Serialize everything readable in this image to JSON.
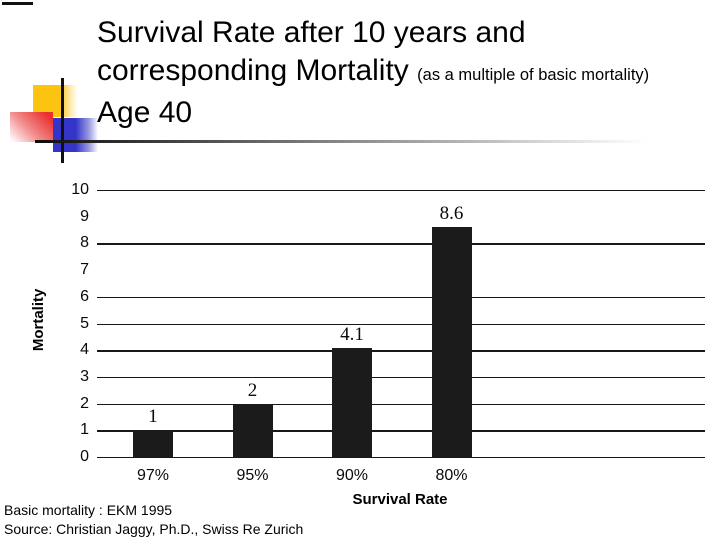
{
  "title": {
    "line1": "Survival Rate after 10 years and",
    "line2_main": "corresponding Mortality ",
    "line2_note": "(as a multiple of basic mortality)",
    "line3": "Age 40"
  },
  "chart_data": {
    "type": "bar",
    "categories": [
      "97%",
      "95%",
      "90%",
      "80%"
    ],
    "values": [
      1,
      2,
      4.1,
      8.6
    ],
    "value_labels": [
      "1",
      "2",
      "4.1",
      "8.6"
    ],
    "xlabel": "Survival Rate",
    "ylabel": "Mortality",
    "ylim": [
      0,
      10
    ],
    "yticks": [
      0,
      1,
      2,
      3,
      4,
      5,
      6,
      7,
      8,
      9,
      10
    ],
    "gridline_values": [
      0,
      1,
      2,
      3,
      4,
      5,
      6,
      8,
      10
    ],
    "grid": true,
    "legend_position": "none",
    "bar_color": "#1b1b1b"
  },
  "footer": {
    "line1": "Basic mortality : EKM 1995",
    "line2": "Source: Christian Jaggy, Ph.D., Swiss Re Zurich"
  },
  "colors": {
    "decor_yellow": "#fcc411",
    "decor_blue": "#3434c8",
    "decor_red": "#ea3131",
    "line": "#111111"
  }
}
